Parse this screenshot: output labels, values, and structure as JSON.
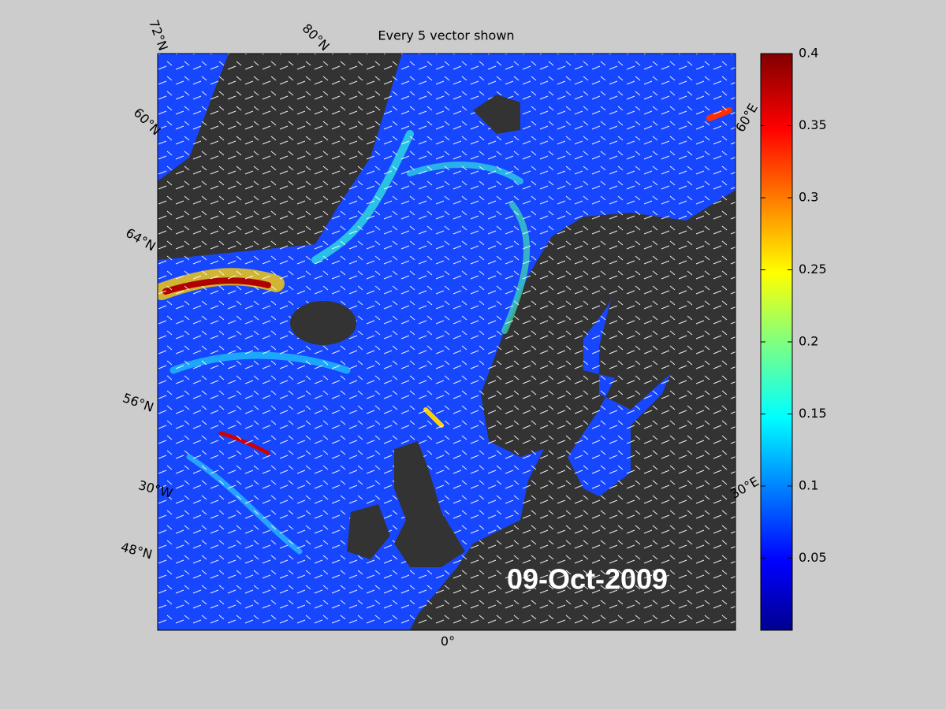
{
  "title": "Every 5 vector shown",
  "date_label": "09-Oct-2009",
  "map_labels": [
    "72°N",
    "80°N",
    "60°E",
    "60°N",
    "64°N",
    "56°N",
    "30°W",
    "48°N",
    "30°E",
    "0°"
  ],
  "colorbar": {
    "lim": [
      0,
      0.4
    ],
    "ticks": [
      0.05,
      0.1,
      0.15,
      0.2,
      0.25,
      0.3,
      0.35,
      0.4
    ]
  }
}
